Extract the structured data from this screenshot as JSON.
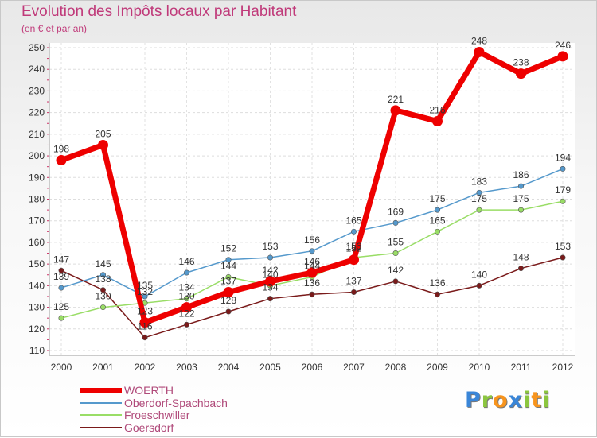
{
  "chart_data": {
    "type": "line",
    "title": "Evolution des Impôts locaux par Habitant",
    "subtitle": "(en € et par an)",
    "x": [
      "2000",
      "2001",
      "2002",
      "2003",
      "2004",
      "2005",
      "2006",
      "2007",
      "2008",
      "2009",
      "2010",
      "2011",
      "2012"
    ],
    "ylim": [
      110,
      250
    ],
    "yticks": [
      110,
      120,
      130,
      140,
      150,
      160,
      170,
      180,
      190,
      200,
      210,
      220,
      230,
      240,
      250
    ],
    "grid": true,
    "series": [
      {
        "name": "Goersdorf",
        "color": "#7a1a1a",
        "values": [
          147,
          138,
          116,
          122,
          128,
          134,
          136,
          137,
          142,
          136,
          140,
          148,
          153
        ]
      },
      {
        "name": "Froeschwiller",
        "color": "#99dd66",
        "values": [
          125,
          130,
          132,
          134,
          144,
          140,
          144,
          153,
          155,
          165,
          175,
          175,
          179
        ]
      },
      {
        "name": "Oberdorf-Spachbach",
        "color": "#5599cc",
        "values": [
          139,
          145,
          135,
          146,
          152,
          153,
          156,
          165,
          169,
          175,
          183,
          186,
          194
        ]
      },
      {
        "name": "WOERTH",
        "color": "#ee0000",
        "values": [
          198,
          205,
          123,
          130,
          137,
          142,
          146,
          152,
          221,
          216,
          248,
          238,
          246
        ]
      }
    ]
  },
  "legend": [
    {
      "label": "WOERTH",
      "color": "#ee0000"
    },
    {
      "label": "Oberdorf-Spachbach",
      "color": "#5599cc"
    },
    {
      "label": "Froeschwiller",
      "color": "#99dd66"
    },
    {
      "label": "Goersdorf",
      "color": "#7a1a1a"
    }
  ],
  "logo": {
    "letters": [
      "P",
      "r",
      "o",
      "x",
      "i",
      "t",
      "i"
    ],
    "colors": [
      "#3a86d8",
      "#8cc63f",
      "#f7941d",
      "#3a86d8",
      "#8cc63f",
      "#f7941d",
      "#8cc63f"
    ]
  }
}
